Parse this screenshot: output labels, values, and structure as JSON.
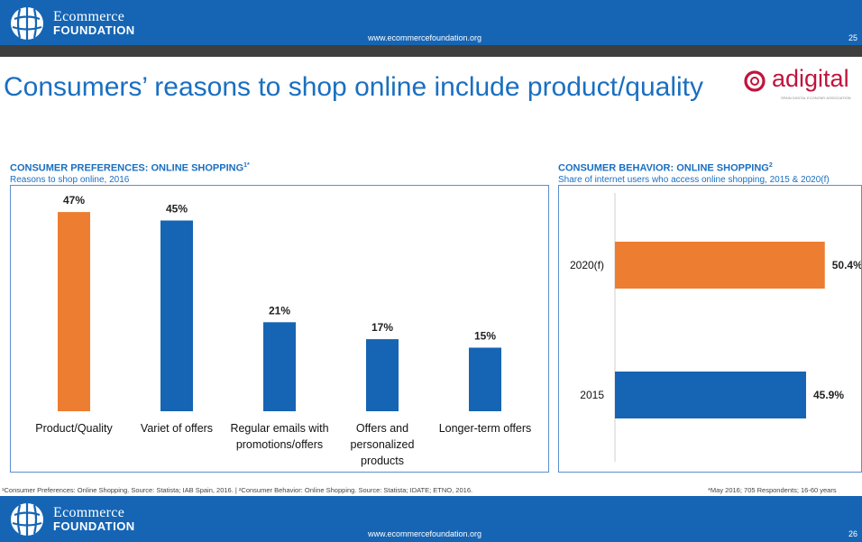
{
  "header": {
    "brand_line1": "Ecommerce",
    "brand_line2": "FOUNDATION",
    "url": "www.ecommercefoundation.org",
    "page_number": "25",
    "accent_color": "#1565b4"
  },
  "title": "Consumers’ reasons to shop online include product/quality",
  "partner_logo": {
    "text": "adigital",
    "subtitle": "SPAIN DIGITAL ECONOMY ASSOCIATION",
    "color": "#c0143c"
  },
  "left_panel": {
    "title": "CONSUMER PREFERENCES: ONLINE SHOPPING",
    "title_sup": "1*",
    "subtitle": "Reasons to shop online, 2016"
  },
  "right_panel": {
    "title": "CONSUMER BEHAVIOR: ONLINE SHOPPING",
    "title_sup": "2",
    "subtitle": "Share of internet users who access online shopping, 2015 & 2020(f)"
  },
  "chart_data": [
    {
      "type": "bar",
      "orientation": "vertical",
      "categories": [
        "Product/Quality",
        "Variet of offers",
        "Regular emails with promotions/offers",
        "Offers and personalized products",
        "Longer-term offers"
      ],
      "category_lines": [
        [
          "Product/Quality"
        ],
        [
          "Variet of offers"
        ],
        [
          "Regular emails with",
          "promotions/offers"
        ],
        [
          "Offers and",
          "personalized",
          "products"
        ],
        [
          "Longer-term offers"
        ]
      ],
      "values": [
        47,
        45,
        21,
        17,
        15
      ],
      "value_labels": [
        "47%",
        "45%",
        "21%",
        "17%",
        "15%"
      ],
      "colors": [
        "#ed7d31",
        "#1565b4",
        "#1565b4",
        "#1565b4",
        "#1565b4"
      ],
      "unit": "%",
      "ylim": [
        0,
        50
      ],
      "grid": false
    },
    {
      "type": "bar",
      "orientation": "horizontal",
      "categories": [
        "2020(f)",
        "2015"
      ],
      "values": [
        50.4,
        45.9
      ],
      "value_labels": [
        "50.4%",
        "45.9%"
      ],
      "colors": [
        "#ed7d31",
        "#1565b4"
      ],
      "unit": "%",
      "xlim": [
        0,
        55
      ],
      "grid": false
    }
  ],
  "footnote_left": "¹Consumer Preferences: Online Shopping. Source: Statista; IAB Spain, 2016. | ²Consumer Behavior: Online Shopping. Source: Statista; IDATE; ETNO, 2016.",
  "footnote_right": "*May 2016; 705 Respondents; 16-60 years",
  "footer": {
    "brand_line1": "Ecommerce",
    "brand_line2": "FOUNDATION",
    "url": "www.ecommercefoundation.org",
    "page_number": "26"
  }
}
